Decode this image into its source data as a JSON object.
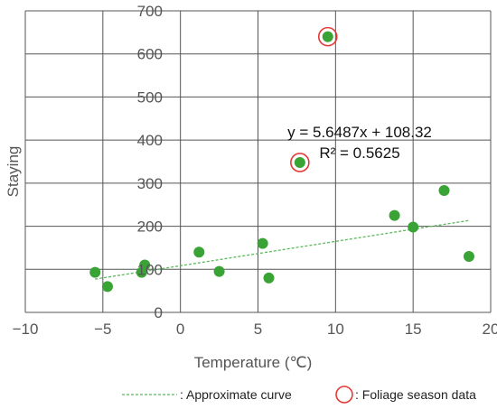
{
  "colors": {
    "points": "#3aa335",
    "highlight": "#e53935",
    "trend": "#5cb85c",
    "grid": "#555555",
    "text": "#555555"
  },
  "chart_data": {
    "type": "scatter",
    "title": "",
    "xlabel": "Temperature (℃)",
    "ylabel": "Staying",
    "xlim": [
      -10,
      20
    ],
    "ylim": [
      0,
      700
    ],
    "x_ticks": [
      "−10",
      "−5",
      "0",
      "5",
      "10",
      "15",
      "20"
    ],
    "y_ticks": [
      "0",
      "100",
      "200",
      "300",
      "400",
      "500",
      "600",
      "700"
    ],
    "grid": true,
    "points": [
      {
        "x": -5.5,
        "y": 93
      },
      {
        "x": -4.7,
        "y": 60
      },
      {
        "x": -2.5,
        "y": 93
      },
      {
        "x": -2.3,
        "y": 110
      },
      {
        "x": 1.2,
        "y": 140
      },
      {
        "x": 2.5,
        "y": 95
      },
      {
        "x": 5.3,
        "y": 160
      },
      {
        "x": 5.7,
        "y": 80
      },
      {
        "x": 7.7,
        "y": 348,
        "highlight": true
      },
      {
        "x": 9.5,
        "y": 640,
        "highlight": true
      },
      {
        "x": 13.8,
        "y": 225
      },
      {
        "x": 15.0,
        "y": 198
      },
      {
        "x": 17.0,
        "y": 283
      },
      {
        "x": 18.6,
        "y": 130
      }
    ],
    "trendline": {
      "slope": 5.6487,
      "intercept": 108.32,
      "x_range": [
        -5.5,
        18.6
      ]
    },
    "annotations": {
      "equation": "y = 5.6487x + 108.32",
      "r_squared": "R² = 0.5625"
    },
    "legend": {
      "position": "bottom",
      "entries": [
        {
          "label": ": Approximate curve",
          "marker": "dashed-line"
        },
        {
          "label": ": Foliage season data",
          "marker": "red-circle"
        }
      ]
    }
  }
}
